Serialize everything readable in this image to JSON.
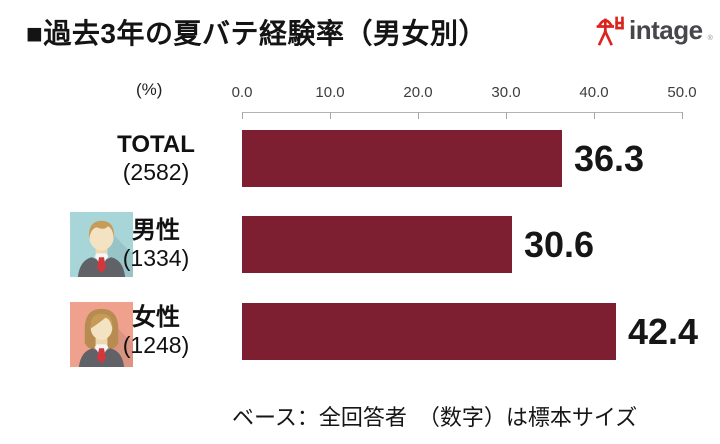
{
  "title": "■過去3年の夏バテ経験率（男女別）",
  "logo": {
    "text": "intage",
    "registered": "®",
    "mark_color": "#d9251d"
  },
  "footer": "ベース：全回答者　（数字）は標本サイズ",
  "chart_data": {
    "type": "bar",
    "orientation": "horizontal",
    "title": "過去3年の夏バテ経験率（男女別）",
    "unit_label": "(%)",
    "xlim": [
      0,
      50
    ],
    "axis_ticks": [
      "0.0",
      "10.0",
      "20.0",
      "30.0",
      "40.0",
      "50.0"
    ],
    "grid": false,
    "legend": "none",
    "bar_color": "#7D1E31",
    "categories": [
      "TOTAL",
      "男性",
      "女性"
    ],
    "sample_sizes": [
      "(2582)",
      "(1334)",
      "(1248)"
    ],
    "values": [
      36.3,
      30.6,
      42.4
    ],
    "rows": [
      {
        "label": "TOTAL",
        "n": "(2582)",
        "value": 36.3,
        "value_label": "36.3",
        "icon": "none"
      },
      {
        "label": "男性",
        "n": "(1334)",
        "value": 30.6,
        "value_label": "30.6",
        "icon": "male-avatar"
      },
      {
        "label": "女性",
        "n": "(1248)",
        "value": 42.4,
        "value_label": "42.4",
        "icon": "female-avatar"
      }
    ]
  }
}
